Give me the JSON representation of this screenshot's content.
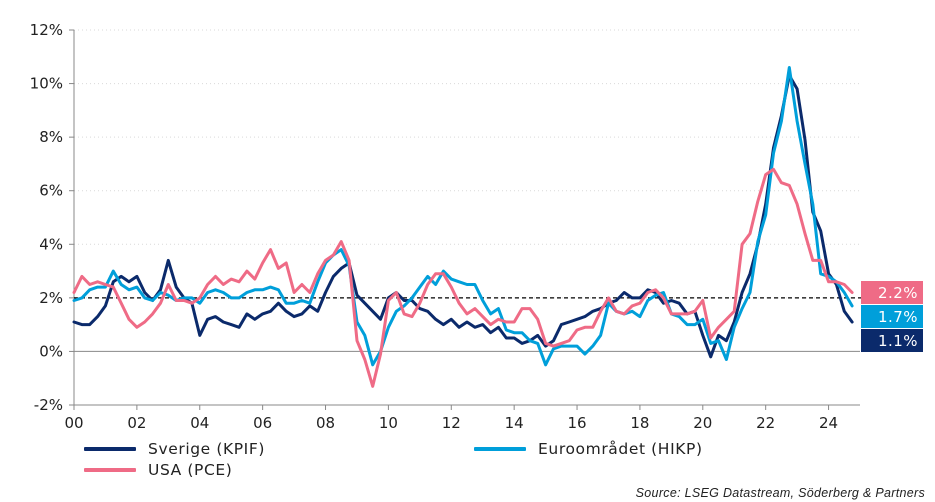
{
  "chart_data": {
    "type": "line",
    "ylim": [
      -2,
      12
    ],
    "xlim": [
      2000,
      2025
    ],
    "y_ticks": [
      -2,
      0,
      2,
      4,
      6,
      8,
      10,
      12
    ],
    "y_tick_labels": [
      "-2%",
      "0%",
      "2%",
      "4%",
      "6%",
      "8%",
      "10%",
      "12%"
    ],
    "x_ticks": [
      2000,
      2002,
      2004,
      2006,
      2008,
      2010,
      2012,
      2014,
      2016,
      2018,
      2020,
      2022,
      2024
    ],
    "x_tick_labels": [
      "00",
      "02",
      "04",
      "06",
      "08",
      "10",
      "12",
      "14",
      "16",
      "18",
      "20",
      "22",
      "24"
    ],
    "grid": "horizontal dotted",
    "reference_line": {
      "y": 2,
      "style": "dashed",
      "color": "#000000"
    },
    "zero_line": {
      "y": 0,
      "color": "#888888"
    },
    "series": [
      {
        "name": "Sverige (KPIF)",
        "color": "#0b2a6b",
        "end_label": "1.1%",
        "x": [
          2000.0,
          2000.25,
          2000.5,
          2000.75,
          2001.0,
          2001.25,
          2001.5,
          2001.75,
          2002.0,
          2002.25,
          2002.5,
          2002.75,
          2003.0,
          2003.25,
          2003.5,
          2003.75,
          2004.0,
          2004.25,
          2004.5,
          2004.75,
          2005.0,
          2005.25,
          2005.5,
          2005.75,
          2006.0,
          2006.25,
          2006.5,
          2006.75,
          2007.0,
          2007.25,
          2007.5,
          2007.75,
          2008.0,
          2008.25,
          2008.5,
          2008.75,
          2009.0,
          2009.25,
          2009.5,
          2009.75,
          2010.0,
          2010.25,
          2010.5,
          2010.75,
          2011.0,
          2011.25,
          2011.5,
          2011.75,
          2012.0,
          2012.25,
          2012.5,
          2012.75,
          2013.0,
          2013.25,
          2013.5,
          2013.75,
          2014.0,
          2014.25,
          2014.5,
          2014.75,
          2015.0,
          2015.25,
          2015.5,
          2015.75,
          2016.0,
          2016.25,
          2016.5,
          2016.75,
          2017.0,
          2017.25,
          2017.5,
          2017.75,
          2018.0,
          2018.25,
          2018.5,
          2018.75,
          2019.0,
          2019.25,
          2019.5,
          2019.75,
          2020.0,
          2020.25,
          2020.5,
          2020.75,
          2021.0,
          2021.25,
          2021.5,
          2021.75,
          2022.0,
          2022.25,
          2022.5,
          2022.75,
          2023.0,
          2023.25,
          2023.5,
          2023.75,
          2024.0,
          2024.25,
          2024.5,
          2024.75
        ],
        "values": [
          1.1,
          1.0,
          1.0,
          1.3,
          1.7,
          2.6,
          2.8,
          2.6,
          2.8,
          2.2,
          1.9,
          2.3,
          3.4,
          2.4,
          2.0,
          1.8,
          0.6,
          1.2,
          1.3,
          1.1,
          1.0,
          0.9,
          1.4,
          1.2,
          1.4,
          1.5,
          1.8,
          1.5,
          1.3,
          1.4,
          1.7,
          1.5,
          2.2,
          2.8,
          3.1,
          3.3,
          2.1,
          1.8,
          1.5,
          1.2,
          2.0,
          2.2,
          1.9,
          1.9,
          1.6,
          1.5,
          1.2,
          1.0,
          1.2,
          0.9,
          1.1,
          0.9,
          1.0,
          0.7,
          0.9,
          0.5,
          0.5,
          0.3,
          0.4,
          0.6,
          0.2,
          0.4,
          1.0,
          1.1,
          1.2,
          1.3,
          1.5,
          1.6,
          1.8,
          1.9,
          2.2,
          2.0,
          2.0,
          2.3,
          2.2,
          1.8,
          1.9,
          1.8,
          1.4,
          1.5,
          0.6,
          -0.2,
          0.6,
          0.4,
          1.1,
          2.2,
          2.9,
          4.0,
          5.5,
          7.6,
          8.8,
          10.3,
          9.8,
          7.9,
          5.2,
          4.5,
          2.9,
          2.5,
          1.5,
          1.1
        ]
      },
      {
        "name": "Euroområdet (HIKP)",
        "color": "#009fda",
        "end_label": "1.7%",
        "x": [
          2000.0,
          2000.25,
          2000.5,
          2000.75,
          2001.0,
          2001.25,
          2001.5,
          2001.75,
          2002.0,
          2002.25,
          2002.5,
          2002.75,
          2003.0,
          2003.25,
          2003.5,
          2003.75,
          2004.0,
          2004.25,
          2004.5,
          2004.75,
          2005.0,
          2005.25,
          2005.5,
          2005.75,
          2006.0,
          2006.25,
          2006.5,
          2006.75,
          2007.0,
          2007.25,
          2007.5,
          2007.75,
          2008.0,
          2008.25,
          2008.5,
          2008.75,
          2009.0,
          2009.25,
          2009.5,
          2009.75,
          2010.0,
          2010.25,
          2010.5,
          2010.75,
          2011.0,
          2011.25,
          2011.5,
          2011.75,
          2012.0,
          2012.25,
          2012.5,
          2012.75,
          2013.0,
          2013.25,
          2013.5,
          2013.75,
          2014.0,
          2014.25,
          2014.5,
          2014.75,
          2015.0,
          2015.25,
          2015.5,
          2015.75,
          2016.0,
          2016.25,
          2016.5,
          2016.75,
          2017.0,
          2017.25,
          2017.5,
          2017.75,
          2018.0,
          2018.25,
          2018.5,
          2018.75,
          2019.0,
          2019.25,
          2019.5,
          2019.75,
          2020.0,
          2020.25,
          2020.5,
          2020.75,
          2021.0,
          2021.25,
          2021.5,
          2021.75,
          2022.0,
          2022.25,
          2022.5,
          2022.75,
          2023.0,
          2023.25,
          2023.5,
          2023.75,
          2024.0,
          2024.25,
          2024.5,
          2024.75
        ],
        "values": [
          1.9,
          2.0,
          2.3,
          2.4,
          2.4,
          3.0,
          2.5,
          2.3,
          2.4,
          2.0,
          1.9,
          2.2,
          2.1,
          1.9,
          2.0,
          2.0,
          1.8,
          2.2,
          2.3,
          2.2,
          2.0,
          2.0,
          2.2,
          2.3,
          2.3,
          2.4,
          2.3,
          1.8,
          1.8,
          1.9,
          1.8,
          2.6,
          3.3,
          3.6,
          3.8,
          3.2,
          1.1,
          0.6,
          -0.5,
          0.0,
          0.9,
          1.5,
          1.7,
          2.0,
          2.4,
          2.8,
          2.5,
          3.0,
          2.7,
          2.6,
          2.5,
          2.5,
          1.9,
          1.4,
          1.6,
          0.8,
          0.7,
          0.7,
          0.4,
          0.3,
          -0.5,
          0.1,
          0.2,
          0.2,
          0.2,
          -0.1,
          0.2,
          0.6,
          1.8,
          1.5,
          1.4,
          1.5,
          1.3,
          1.9,
          2.1,
          2.2,
          1.4,
          1.3,
          1.0,
          1.0,
          1.2,
          0.3,
          0.4,
          -0.3,
          0.9,
          1.6,
          2.2,
          4.1,
          5.1,
          7.4,
          8.6,
          10.6,
          8.6,
          7.0,
          5.5,
          2.9,
          2.8,
          2.6,
          2.2,
          1.7
        ]
      },
      {
        "name": "USA (PCE)",
        "color": "#ef6b86",
        "end_label": "2.2%",
        "x": [
          2000.0,
          2000.25,
          2000.5,
          2000.75,
          2001.0,
          2001.25,
          2001.5,
          2001.75,
          2002.0,
          2002.25,
          2002.5,
          2002.75,
          2003.0,
          2003.25,
          2003.5,
          2003.75,
          2004.0,
          2004.25,
          2004.5,
          2004.75,
          2005.0,
          2005.25,
          2005.5,
          2005.75,
          2006.0,
          2006.25,
          2006.5,
          2006.75,
          2007.0,
          2007.25,
          2007.5,
          2007.75,
          2008.0,
          2008.25,
          2008.5,
          2008.75,
          2009.0,
          2009.25,
          2009.5,
          2009.75,
          2010.0,
          2010.25,
          2010.5,
          2010.75,
          2011.0,
          2011.25,
          2011.5,
          2011.75,
          2012.0,
          2012.25,
          2012.5,
          2012.75,
          2013.0,
          2013.25,
          2013.5,
          2013.75,
          2014.0,
          2014.25,
          2014.5,
          2014.75,
          2015.0,
          2015.25,
          2015.5,
          2015.75,
          2016.0,
          2016.25,
          2016.5,
          2016.75,
          2017.0,
          2017.25,
          2017.5,
          2017.75,
          2018.0,
          2018.25,
          2018.5,
          2018.75,
          2019.0,
          2019.25,
          2019.5,
          2019.75,
          2020.0,
          2020.25,
          2020.5,
          2020.75,
          2021.0,
          2021.25,
          2021.5,
          2021.75,
          2022.0,
          2022.25,
          2022.5,
          2022.75,
          2023.0,
          2023.25,
          2023.5,
          2023.75,
          2024.0,
          2024.25,
          2024.5,
          2024.75
        ],
        "values": [
          2.2,
          2.8,
          2.5,
          2.6,
          2.5,
          2.4,
          1.8,
          1.2,
          0.9,
          1.1,
          1.4,
          1.8,
          2.5,
          1.9,
          1.9,
          1.8,
          2.0,
          2.5,
          2.8,
          2.5,
          2.7,
          2.6,
          3.0,
          2.7,
          3.3,
          3.8,
          3.1,
          3.3,
          2.2,
          2.5,
          2.2,
          2.9,
          3.4,
          3.6,
          4.1,
          3.4,
          0.4,
          -0.3,
          -1.3,
          -0.1,
          1.9,
          2.2,
          1.4,
          1.3,
          1.8,
          2.5,
          2.9,
          2.9,
          2.4,
          1.8,
          1.4,
          1.6,
          1.3,
          1.0,
          1.2,
          1.1,
          1.1,
          1.6,
          1.6,
          1.2,
          0.3,
          0.2,
          0.3,
          0.4,
          0.8,
          0.9,
          0.9,
          1.5,
          2.0,
          1.5,
          1.4,
          1.7,
          1.8,
          2.2,
          2.3,
          2.0,
          1.4,
          1.4,
          1.4,
          1.5,
          1.9,
          0.5,
          0.9,
          1.2,
          1.5,
          4.0,
          4.4,
          5.6,
          6.6,
          6.8,
          6.3,
          6.2,
          5.5,
          4.4,
          3.4,
          3.4,
          2.6,
          2.6,
          2.5,
          2.2
        ]
      }
    ]
  },
  "source": "Source: LSEG Datastream, Söderberg & Partners"
}
